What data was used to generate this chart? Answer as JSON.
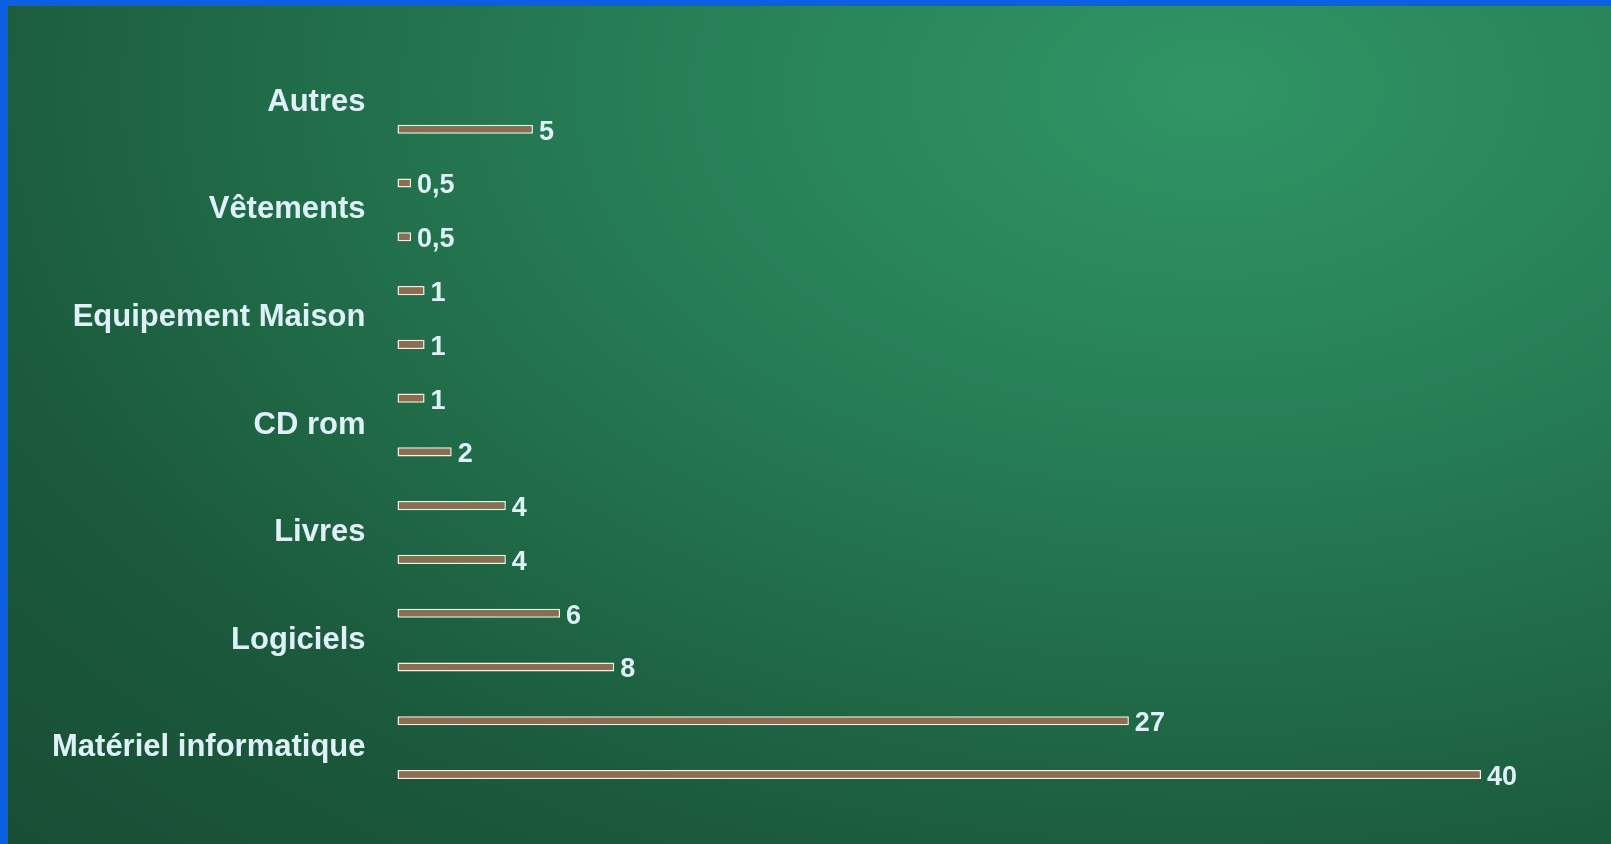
{
  "chart_data": {
    "type": "bar",
    "orientation": "horizontal",
    "categories": [
      "Autres",
      "Vêtements",
      "Equipement Maison",
      "CD rom",
      "Livres",
      "Logiciels",
      "Matériel informatique"
    ],
    "series": [
      {
        "color": "#8b6d4f",
        "values": [
          null,
          0.5,
          1,
          1,
          4,
          6,
          27
        ],
        "value_labels": [
          null,
          "0,5",
          "1",
          "1",
          "4",
          "6",
          "27"
        ]
      },
      {
        "color": "#8b6d4f",
        "values": [
          5,
          0.5,
          1,
          2,
          4,
          8,
          40
        ],
        "value_labels": [
          "5",
          "0,5",
          "1",
          "2",
          "4",
          "8",
          "40"
        ]
      }
    ],
    "grid": false,
    "legend": false,
    "tick_labels": "y"
  }
}
